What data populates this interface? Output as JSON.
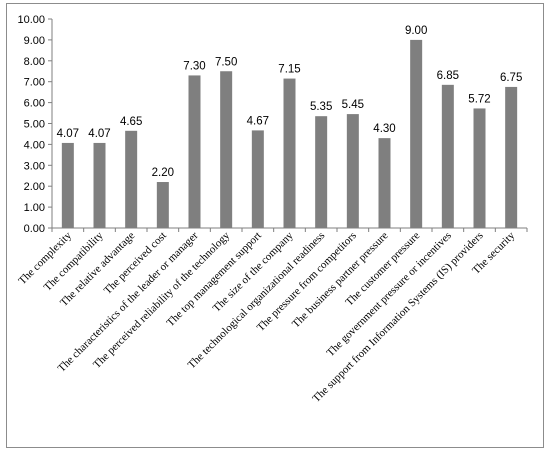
{
  "chart_data": {
    "type": "bar",
    "title": "",
    "xlabel": "",
    "ylabel": "",
    "ylim": [
      0,
      10
    ],
    "ytick_step": 1,
    "ytick_labels": [
      "0.00",
      "1.00",
      "2.00",
      "3.00",
      "4.00",
      "5.00",
      "6.00",
      "7.00",
      "8.00",
      "9.00",
      "10.00"
    ],
    "grid": false,
    "bar_color": "#7f7f7f",
    "categories": [
      "The complexity",
      "The compatibility",
      "The relative advantage",
      "The perceived cost",
      "The characteristics of the leader or manager",
      "The perceived reliability of the technology",
      "The top management support",
      "The size of the company",
      "The technological organizational readiness",
      "The pressure from competitors",
      "The business partner pressure",
      "The customer pressure",
      "The government pressure or incentives",
      "The support from Information Systems (IS) providers",
      "The security"
    ],
    "values": [
      4.07,
      4.07,
      4.65,
      2.2,
      7.3,
      7.5,
      4.67,
      7.15,
      5.35,
      5.45,
      4.3,
      9.0,
      6.85,
      5.72,
      6.75
    ],
    "data_labels": [
      "4.07",
      "4.07",
      "4.65",
      "2.20",
      "7.30",
      "7.50",
      "4.67",
      "7.15",
      "5.35",
      "5.45",
      "4.30",
      "9.00",
      "6.85",
      "5.72",
      "6.75"
    ]
  }
}
